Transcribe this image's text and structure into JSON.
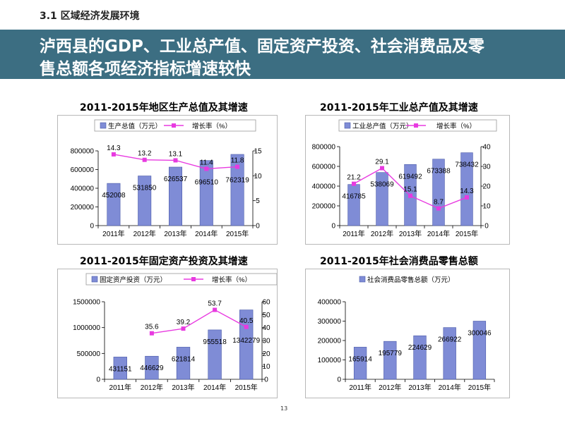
{
  "section_label": "3.1 区域经济发展环境",
  "banner": {
    "line1": "泸西县的GDP、工业总产值、固定资产投资、社会消费品及零",
    "line2": "售总额各项经济指标增速较快"
  },
  "page_number": "13",
  "chart_data": [
    {
      "type": "bar",
      "title": "2011-2015年地区生产总值及其增速",
      "categories": [
        "2011年",
        "2012年",
        "2013年",
        "2014年",
        "2015年"
      ],
      "series": [
        {
          "name": "生产总值（万元）",
          "type": "bar",
          "axis": "left",
          "values": [
            452008,
            531850,
            626537,
            696510,
            762319
          ],
          "labels": [
            "452008",
            "531850",
            "626537",
            "696510",
            "762319"
          ]
        },
        {
          "name": "增长率（%）",
          "type": "line",
          "axis": "right",
          "values": [
            14.3,
            13.2,
            13.1,
            11.4,
            11.8
          ],
          "labels": [
            "14.3",
            "13.2",
            "13.1",
            "11.4",
            "11.8"
          ]
        }
      ],
      "ylim": [
        0,
        800000
      ],
      "yticks": [
        "0",
        "200000",
        "400000",
        "600000",
        "800000"
      ],
      "y2lim": [
        0,
        15
      ],
      "y2ticks": [
        "0",
        "5",
        "10",
        "15"
      ],
      "legend": "top",
      "grid": false
    },
    {
      "type": "bar",
      "title": "2011-2015年工业总产值及其增速",
      "categories": [
        "2011年",
        "2012年",
        "2013年",
        "2014年",
        "2015年"
      ],
      "series": [
        {
          "name": "工业总产值（万元）",
          "type": "bar",
          "axis": "left",
          "values": [
            416785,
            538069,
            619492,
            673388,
            738432
          ],
          "labels": [
            "416785",
            "538069",
            "619492",
            "673388",
            "738432"
          ]
        },
        {
          "name": "增长率（%）",
          "type": "line",
          "axis": "right",
          "values": [
            21.2,
            29.1,
            15.1,
            8.7,
            14.3
          ],
          "labels": [
            "21.2",
            "29.1",
            "15.1",
            "8.7",
            "14.3"
          ]
        }
      ],
      "ylim": [
        0,
        800000
      ],
      "yticks": [
        "0",
        "200000",
        "400000",
        "600000",
        "800000"
      ],
      "y2lim": [
        0,
        40
      ],
      "y2ticks": [
        "0",
        "10",
        "20",
        "30",
        "40"
      ],
      "legend": "top",
      "grid": false
    },
    {
      "type": "bar",
      "title": "2011-2015年固定资产投资及其增速",
      "categories": [
        "2011年",
        "2012年",
        "2013年",
        "2014年",
        "2015年"
      ],
      "series": [
        {
          "name": "固定资产投资（万元）",
          "type": "bar",
          "axis": "left",
          "values": [
            431151,
            446629,
            621814,
            955518,
            1342279
          ],
          "labels": [
            "431151",
            "446629",
            "621814",
            "955518",
            "1342279"
          ]
        },
        {
          "name": "增长率（%）",
          "type": "line",
          "axis": "right",
          "values": [
            null,
            35.6,
            39.2,
            53.7,
            40.5
          ],
          "labels": [
            "",
            "35.6",
            "39.2",
            "53.7",
            "40.5"
          ]
        }
      ],
      "ylim": [
        0,
        1500000
      ],
      "yticks": [
        "0",
        "500000",
        "1000000",
        "1500000"
      ],
      "y2lim": [
        0,
        60
      ],
      "y2ticks": [
        "0",
        "10",
        "20",
        "30",
        "40",
        "50",
        "60"
      ],
      "legend": "top",
      "grid": false
    },
    {
      "type": "bar",
      "title": "2011-2015年社会消费品零售总额",
      "categories": [
        "2011年",
        "2012年",
        "2013年",
        "2014年",
        "2015年"
      ],
      "series": [
        {
          "name": "社会消费品零售总额（万元）",
          "type": "bar",
          "axis": "left",
          "values": [
            165914,
            195779,
            224629,
            266922,
            300046
          ],
          "labels": [
            "165914",
            "195779",
            "224629",
            "266922",
            "300046"
          ]
        }
      ],
      "ylim": [
        0,
        400000
      ],
      "yticks": [
        "0",
        "100000",
        "200000",
        "300000",
        "400000"
      ],
      "legend": "top",
      "grid": false
    }
  ]
}
